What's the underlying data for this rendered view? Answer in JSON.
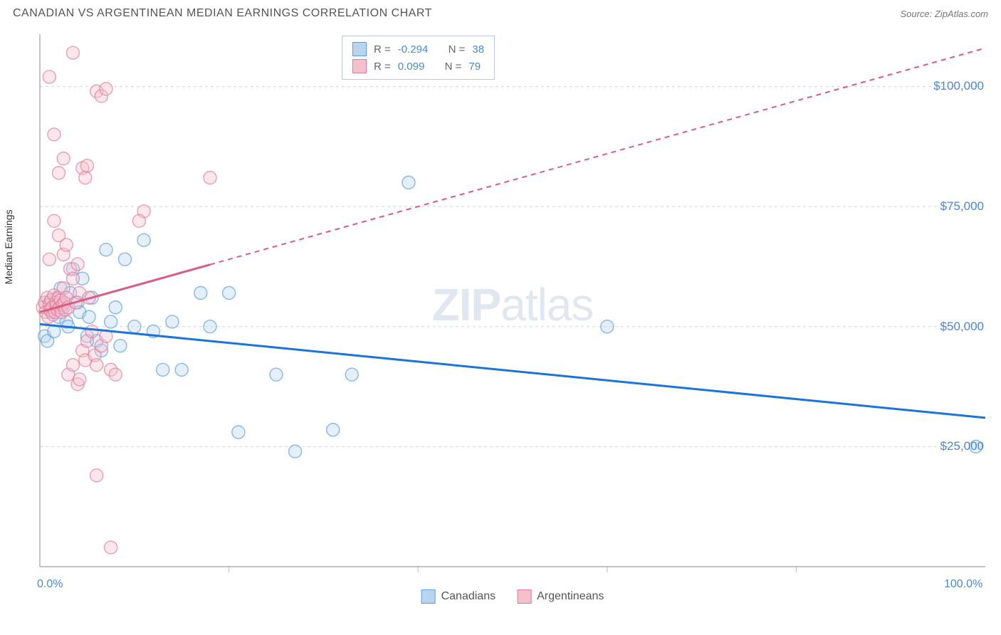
{
  "header": {
    "title": "CANADIAN VS ARGENTINEAN MEDIAN EARNINGS CORRELATION CHART",
    "source": "Source: ZipAtlas.com"
  },
  "watermark": {
    "zip": "ZIP",
    "atlas": "atlas"
  },
  "chart": {
    "type": "scatter",
    "ylabel": "Median Earnings",
    "xlim": [
      0,
      100
    ],
    "ylim": [
      0,
      110000
    ],
    "xticks": [
      {
        "value": 0,
        "label": "0.0%"
      },
      {
        "value": 100,
        "label": "100.0%"
      }
    ],
    "xtick_minor": [
      20,
      40,
      60,
      80
    ],
    "yticks": [
      {
        "value": 25000,
        "label": "$25,000"
      },
      {
        "value": 50000,
        "label": "$50,000"
      },
      {
        "value": 75000,
        "label": "$75,000"
      },
      {
        "value": 100000,
        "label": "$100,000"
      }
    ],
    "grid_color": "#d8d8d8",
    "axis_color": "#888",
    "background_color": "#ffffff",
    "marker_radius": 9,
    "marker_opacity": 0.38,
    "series": [
      {
        "name": "Canadians",
        "color_fill": "#b8d4f0",
        "color_stroke": "#5a9de0",
        "trend": {
          "color": "#1b74d8",
          "width": 3,
          "y_at_x0": 50500,
          "y_at_x100": 31000,
          "solid_xmax": 100
        },
        "points": [
          [
            0.5,
            48000
          ],
          [
            0.8,
            47000
          ],
          [
            1,
            55000
          ],
          [
            1.2,
            53000
          ],
          [
            1.5,
            49000
          ],
          [
            1.8,
            56000
          ],
          [
            2,
            52000
          ],
          [
            2.2,
            58000
          ],
          [
            2.5,
            54000
          ],
          [
            2.8,
            51000
          ],
          [
            3,
            50000
          ],
          [
            3.2,
            57000
          ],
          [
            3.5,
            62000
          ],
          [
            4,
            55000
          ],
          [
            4.2,
            53000
          ],
          [
            4.5,
            60000
          ],
          [
            5,
            48000
          ],
          [
            5.2,
            52000
          ],
          [
            5.5,
            56000
          ],
          [
            6,
            47000
          ],
          [
            6.5,
            45000
          ],
          [
            7,
            66000
          ],
          [
            7.5,
            51000
          ],
          [
            8,
            54000
          ],
          [
            8.5,
            46000
          ],
          [
            9,
            64000
          ],
          [
            10,
            50000
          ],
          [
            11,
            68000
          ],
          [
            12,
            49000
          ],
          [
            13,
            41000
          ],
          [
            14,
            51000
          ],
          [
            15,
            41000
          ],
          [
            17,
            57000
          ],
          [
            18,
            50000
          ],
          [
            20,
            57000
          ],
          [
            21,
            28000
          ],
          [
            25,
            40000
          ],
          [
            27,
            24000
          ],
          [
            31,
            28500
          ],
          [
            33,
            40000
          ],
          [
            39,
            80000
          ],
          [
            60,
            50000
          ],
          [
            99,
            25000
          ]
        ]
      },
      {
        "name": "Argentineans",
        "color_fill": "#f5c0cd",
        "color_stroke": "#e07a9a",
        "trend": {
          "color": "#dc5b86",
          "width": 3,
          "y_at_x0": 53000,
          "y_at_x100": 108000,
          "solid_xmax": 18
        },
        "points": [
          [
            0.3,
            54000
          ],
          [
            0.5,
            55000
          ],
          [
            0.6,
            53000
          ],
          [
            0.8,
            56000
          ],
          [
            0.9,
            52000
          ],
          [
            1,
            54500
          ],
          [
            1.1,
            53500
          ],
          [
            1.2,
            55500
          ],
          [
            1.3,
            54000
          ],
          [
            1.4,
            52500
          ],
          [
            1.5,
            56500
          ],
          [
            1.6,
            53000
          ],
          [
            1.7,
            55000
          ],
          [
            1.8,
            54500
          ],
          [
            1.9,
            53500
          ],
          [
            2,
            56000
          ],
          [
            2.1,
            54000
          ],
          [
            2.2,
            55500
          ],
          [
            2.3,
            53000
          ],
          [
            2.4,
            54500
          ],
          [
            2.5,
            58000
          ],
          [
            2.6,
            55000
          ],
          [
            2.7,
            53500
          ],
          [
            2.8,
            56000
          ],
          [
            3,
            54000
          ],
          [
            3.2,
            62000
          ],
          [
            3.5,
            60000
          ],
          [
            3.8,
            55000
          ],
          [
            4,
            63000
          ],
          [
            4.2,
            57000
          ],
          [
            4.5,
            45000
          ],
          [
            4.8,
            43000
          ],
          [
            5,
            47000
          ],
          [
            5.2,
            56000
          ],
          [
            5.5,
            49000
          ],
          [
            5.8,
            44000
          ],
          [
            6,
            42000
          ],
          [
            6.5,
            46000
          ],
          [
            7,
            48000
          ],
          [
            7.5,
            41000
          ],
          [
            8,
            40000
          ],
          [
            1.5,
            72000
          ],
          [
            2,
            69000
          ],
          [
            2.5,
            65000
          ],
          [
            2.8,
            67000
          ],
          [
            1,
            64000
          ],
          [
            2,
            82000
          ],
          [
            2.5,
            85000
          ],
          [
            4.5,
            83000
          ],
          [
            4.8,
            81000
          ],
          [
            5,
            83500
          ],
          [
            6,
            99000
          ],
          [
            6.5,
            98000
          ],
          [
            7,
            99500
          ],
          [
            3.5,
            107000
          ],
          [
            1,
            102000
          ],
          [
            1.5,
            90000
          ],
          [
            3,
            40000
          ],
          [
            3.5,
            42000
          ],
          [
            4,
            38000
          ],
          [
            4.2,
            39000
          ],
          [
            6,
            19000
          ],
          [
            7.5,
            4000
          ],
          [
            11,
            74000
          ],
          [
            10.5,
            72000
          ],
          [
            18,
            81000
          ]
        ]
      }
    ],
    "legend_top": [
      {
        "swatch": "blue",
        "r_value": "-0.294",
        "n_value": "38"
      },
      {
        "swatch": "pink",
        "r_value": "0.099",
        "n_value": "79"
      }
    ],
    "legend_bottom": [
      {
        "swatch": "blue",
        "label": "Canadians"
      },
      {
        "swatch": "pink",
        "label": "Argentineans"
      }
    ],
    "labels": {
      "R": "R =",
      "N": "N ="
    }
  }
}
